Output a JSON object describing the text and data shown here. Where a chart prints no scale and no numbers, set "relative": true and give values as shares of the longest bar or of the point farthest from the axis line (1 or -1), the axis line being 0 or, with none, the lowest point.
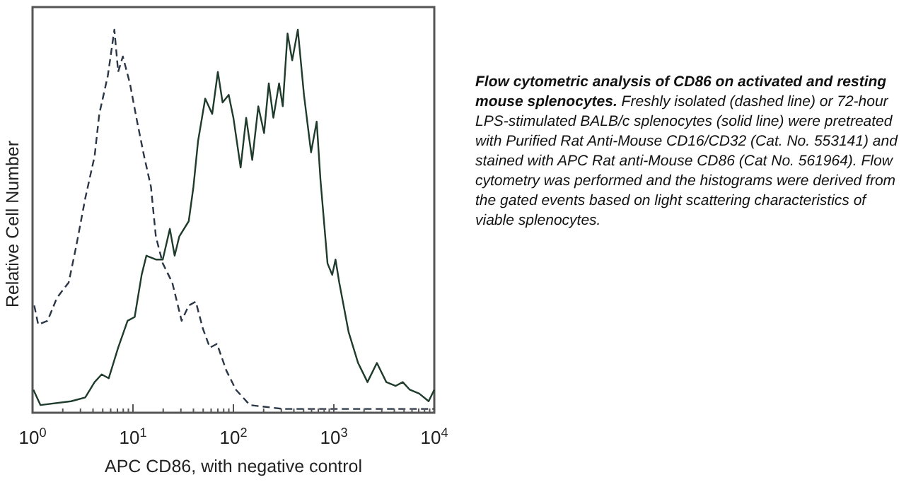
{
  "chart_data": {
    "type": "line",
    "relative": true,
    "log": "x",
    "tick_labels": "x",
    "xlabel": "APC CD86, with negative control",
    "ylabel": "Relative Cell Number",
    "xlim": [
      1,
      10000
    ],
    "xticks": [
      {
        "value": 1,
        "label": "10$^{0}$"
      },
      {
        "value": 2,
        "label": null
      },
      {
        "value": 3,
        "label": null
      },
      {
        "value": 4,
        "label": null
      },
      {
        "value": 5,
        "label": null
      },
      {
        "value": 6,
        "label": null
      },
      {
        "value": 7,
        "label": null
      },
      {
        "value": 8,
        "label": null
      },
      {
        "value": 9,
        "label": null
      },
      {
        "value": 10,
        "label": "10$^{1}$"
      },
      {
        "value": 20,
        "label": null
      },
      {
        "value": 30,
        "label": null
      },
      {
        "value": 40,
        "label": null
      },
      {
        "value": 50,
        "label": null
      },
      {
        "value": 60,
        "label": null
      },
      {
        "value": 70,
        "label": null
      },
      {
        "value": 80,
        "label": null
      },
      {
        "value": 90,
        "label": null
      },
      {
        "value": 100,
        "label": "10$^{2}$"
      },
      {
        "value": 200,
        "label": null
      },
      {
        "value": 300,
        "label": null
      },
      {
        "value": 400,
        "label": null
      },
      {
        "value": 500,
        "label": null
      },
      {
        "value": 600,
        "label": null
      },
      {
        "value": 700,
        "label": null
      },
      {
        "value": 800,
        "label": null
      },
      {
        "value": 900,
        "label": null
      },
      {
        "value": 1000,
        "label": "10$^{3}$"
      },
      {
        "value": 2000,
        "label": null
      },
      {
        "value": 3000,
        "label": null
      },
      {
        "value": 4000,
        "label": null
      },
      {
        "value": 5000,
        "label": null
      },
      {
        "value": 6000,
        "label": null
      },
      {
        "value": 7000,
        "label": null
      },
      {
        "value": 8000,
        "label": null
      },
      {
        "value": 9000,
        "label": null
      },
      {
        "value": 10000,
        "label": "10$^{4}$"
      }
    ],
    "series": [
      {
        "line_style": "dashed",
        "color": "#2b3646",
        "x": [
          1.04,
          1.14,
          1.41,
          1.75,
          2.29,
          2.7,
          3.35,
          4.15,
          4.62,
          5.62,
          6.53,
          7.12,
          7.93,
          9.32,
          11,
          12.9,
          15.1,
          16.9,
          19.8,
          24.6,
          30.5,
          35.9,
          42.2,
          49.6,
          58.3,
          68.6,
          85.1,
          106,
          146,
          310,
          912,
          10000
        ],
        "values": [
          0.28,
          0.23,
          0.24,
          0.3,
          0.34,
          0.43,
          0.56,
          0.67,
          0.78,
          0.88,
          1,
          0.89,
          0.93,
          0.86,
          0.76,
          0.67,
          0.59,
          0.46,
          0.39,
          0.34,
          0.24,
          0.28,
          0.29,
          0.22,
          0.17,
          0.18,
          0.11,
          0.06,
          0.02,
          0.01,
          0.01,
          0.01
        ]
      },
      {
        "line_style": "solid",
        "color": "#1e3b2c",
        "x": [
          1.02,
          1.2,
          2.42,
          3.35,
          4.15,
          4.88,
          5.74,
          7.12,
          8.84,
          10.4,
          12.2,
          13.6,
          16.9,
          19.8,
          23.3,
          26,
          28.9,
          35.9,
          40,
          44.5,
          52.4,
          61.5,
          70,
          78,
          89.8,
          100,
          118,
          134,
          154,
          177,
          202,
          225,
          250,
          285,
          310,
          346,
          385,
          438,
          504,
          593,
          675,
          735,
          865,
          963,
          1039,
          1132,
          1405,
          1743,
          2162,
          2683,
          3329,
          4130,
          4856,
          5707,
          7082,
          8785,
          10000
        ],
        "values": [
          0.06,
          0.02,
          0.03,
          0.04,
          0.08,
          0.1,
          0.09,
          0.17,
          0.24,
          0.25,
          0.36,
          0.41,
          0.4,
          0.4,
          0.48,
          0.41,
          0.46,
          0.5,
          0.59,
          0.71,
          0.82,
          0.78,
          0.89,
          0.81,
          0.83,
          0.77,
          0.64,
          0.77,
          0.66,
          0.8,
          0.73,
          0.86,
          0.77,
          0.86,
          0.8,
          0.99,
          0.92,
          1,
          0.83,
          0.68,
          0.76,
          0.61,
          0.39,
          0.36,
          0.4,
          0.34,
          0.21,
          0.13,
          0.08,
          0.13,
          0.08,
          0.07,
          0.08,
          0.06,
          0.05,
          0.03,
          0.06
        ]
      }
    ],
    "annotations": [
      "Flow cytometric analysis of CD86 on activated and resting mouse splenocytes.",
      "Freshly isolated (dashed line) or 72-hour LPS-stimulated BALB/c splenocytes (solid line) were pretreated with Purified Rat Anti-Mouse CD16/CD32 (Cat. No. 553141) and stained with APC Rat anti-Mouse CD86 (Cat No. 561964). Flow cytometry was performed and the histograms were derived from the gated events based on light scattering characteristics of viable splenocytes."
    ]
  }
}
